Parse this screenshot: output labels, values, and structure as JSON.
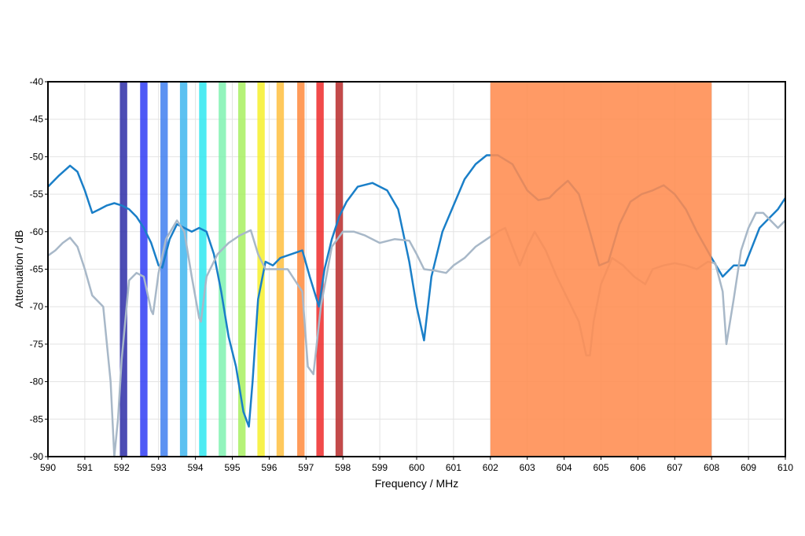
{
  "chart_data": {
    "type": "line",
    "xlabel": "Frequency / MHz",
    "ylabel": "Attenuation / dB",
    "xlim": [
      590,
      610
    ],
    "ylim": [
      -90,
      -40
    ],
    "xticks": [
      590,
      591,
      592,
      593,
      594,
      595,
      596,
      597,
      598,
      599,
      600,
      601,
      602,
      603,
      604,
      605,
      606,
      607,
      608,
      609,
      610
    ],
    "yticks": [
      -40,
      -45,
      -50,
      -55,
      -60,
      -65,
      -70,
      -75,
      -80,
      -85,
      -90
    ],
    "grid": true,
    "channel_bands": [
      {
        "x0": 591.95,
        "x1": 592.15,
        "color": "#2e2ea8"
      },
      {
        "x0": 592.5,
        "x1": 592.7,
        "color": "#2f3cf5"
      },
      {
        "x0": 593.05,
        "x1": 593.25,
        "color": "#3f7ff0"
      },
      {
        "x0": 593.58,
        "x1": 593.78,
        "color": "#3fb6ef"
      },
      {
        "x0": 594.1,
        "x1": 594.3,
        "color": "#2ee8f0"
      },
      {
        "x0": 594.63,
        "x1": 594.83,
        "color": "#7ff2b0"
      },
      {
        "x0": 595.16,
        "x1": 595.36,
        "color": "#a8f060"
      },
      {
        "x0": 595.68,
        "x1": 595.88,
        "color": "#f6f02c"
      },
      {
        "x0": 596.2,
        "x1": 596.4,
        "color": "#ffc040"
      },
      {
        "x0": 596.76,
        "x1": 596.96,
        "color": "#ff8a3c"
      },
      {
        "x0": 597.28,
        "x1": 597.48,
        "color": "#ee2a2a"
      },
      {
        "x0": 597.8,
        "x1": 598.0,
        "color": "#b82a2a"
      }
    ],
    "highlight_band": {
      "x0": 602,
      "x1": 608,
      "color": "#ff8c50"
    },
    "series": [
      {
        "color": "#1a7fc8",
        "x": [
          590,
          590.3,
          590.6,
          590.8,
          591,
          591.2,
          591.4,
          591.6,
          591.8,
          592,
          592.2,
          592.4,
          592.6,
          592.8,
          593,
          593.1,
          593.3,
          593.5,
          593.7,
          593.9,
          594.1,
          594.3,
          594.5,
          594.7,
          594.9,
          595.1,
          595.3,
          595.45,
          595.55,
          595.7,
          595.9,
          596.1,
          596.3,
          596.6,
          596.9,
          597.1,
          597.35,
          597.5,
          597.7,
          597.9,
          598.1,
          598.4,
          598.8,
          599.2,
          599.5,
          599.8,
          600.0,
          600.2,
          600.4,
          600.7,
          601.0,
          601.3,
          601.6,
          601.9,
          602.2,
          602.6,
          603.0,
          603.3,
          603.6,
          603.8,
          604.1,
          604.4,
          604.7,
          604.95,
          605.2,
          605.5,
          605.8,
          606.1,
          606.4,
          606.7,
          607.0,
          607.3,
          607.6,
          608.0,
          608.3,
          608.6,
          608.9,
          609.1,
          609.3,
          609.5,
          609.8,
          610.0
        ],
        "y": [
          -54,
          -52.5,
          -51.2,
          -52,
          -54.5,
          -57.5,
          -57,
          -56.5,
          -56.2,
          -56.5,
          -57,
          -58,
          -59.5,
          -61.5,
          -64.5,
          -64.8,
          -61,
          -59,
          -59.5,
          -60,
          -59.5,
          -60,
          -63,
          -68,
          -74,
          -78,
          -84,
          -86,
          -80,
          -69,
          -64,
          -64.5,
          -63.5,
          -63,
          -62.5,
          -66,
          -70,
          -65,
          -61,
          -58,
          -56,
          -54,
          -53.5,
          -54.5,
          -57,
          -64,
          -70,
          -74.5,
          -66,
          -60,
          -56.5,
          -53,
          -51,
          -49.8,
          -49.8,
          -51,
          -54.5,
          -55.8,
          -55.5,
          -54.5,
          -53.2,
          -55,
          -60,
          -64.5,
          -64,
          -59,
          -56,
          -55,
          -54.5,
          -53.8,
          -55,
          -57,
          -60,
          -63.5,
          -66,
          -64.5,
          -64.5,
          -62,
          -59.5,
          -58.5,
          -57,
          -55.5
        ]
      },
      {
        "color": "#a8b8c8",
        "x": [
          590,
          590.2,
          590.4,
          590.6,
          590.8,
          591,
          591.2,
          591.5,
          591.7,
          591.8,
          591.9,
          592.0,
          592.2,
          592.4,
          592.6,
          592.8,
          592.85,
          593.0,
          593.2,
          593.5,
          593.7,
          593.9,
          594.1,
          594.15,
          594.3,
          594.6,
          594.9,
          595.2,
          595.5,
          595.7,
          595.9,
          596.2,
          596.5,
          596.9,
          597.05,
          597.2,
          597.4,
          597.7,
          598.0,
          598.3,
          598.6,
          599.0,
          599.4,
          599.8,
          600.0,
          600.2,
          600.5,
          600.8,
          601.0,
          601.3,
          601.6,
          601.9,
          602.2,
          602.4,
          602.6,
          602.8,
          603.0,
          603.2,
          603.5,
          603.8,
          604.1,
          604.4,
          604.6,
          604.7,
          604.8,
          605.0,
          605.3,
          605.6,
          605.9,
          606.2,
          606.4,
          606.7,
          607.0,
          607.3,
          607.6,
          607.9,
          608.1,
          608.3,
          608.4,
          608.6,
          608.8,
          609.0,
          609.2,
          609.4,
          609.6,
          609.8,
          610.0
        ],
        "y": [
          -63.2,
          -62.5,
          -61.5,
          -60.8,
          -62,
          -65,
          -68.5,
          -70,
          -80,
          -90,
          -85,
          -77,
          -66.5,
          -65.5,
          -66,
          -70.5,
          -71,
          -65.5,
          -61,
          -58.5,
          -60,
          -66,
          -71.5,
          -72,
          -66,
          -63,
          -61.5,
          -60.5,
          -59.8,
          -63,
          -65,
          -65,
          -65,
          -68,
          -78,
          -79,
          -70,
          -62,
          -60,
          -60,
          -60.5,
          -61.5,
          -61,
          -61.2,
          -63,
          -65,
          -65.2,
          -65.5,
          -64.5,
          -63.5,
          -62,
          -61,
          -60,
          -59.5,
          -62,
          -64.5,
          -62,
          -60,
          -62.5,
          -66,
          -69,
          -72,
          -76.5,
          -76.5,
          -72,
          -67,
          -63.5,
          -64.5,
          -66,
          -67,
          -65,
          -64.5,
          -64.2,
          -64.5,
          -65,
          -64,
          -64.2,
          -68,
          -75,
          -69,
          -62.5,
          -59.5,
          -57.5,
          -57.5,
          -58.5,
          -59.5,
          -58.5
        ]
      }
    ]
  }
}
